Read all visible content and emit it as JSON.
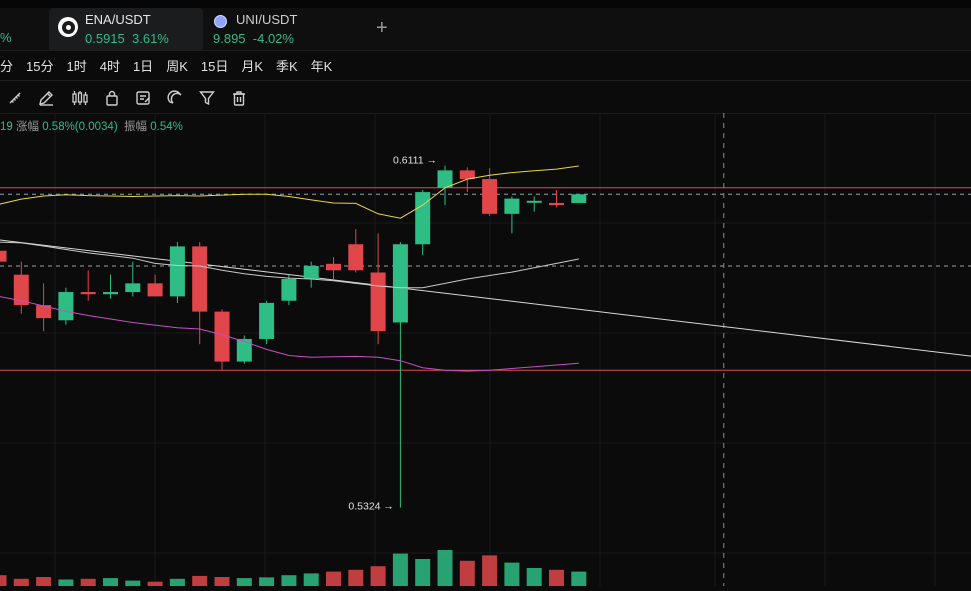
{
  "tabs": [
    {
      "symbol": "ENA/USDT",
      "price": "0.5915",
      "change": "3.61%",
      "active": true,
      "icon": "ena-coin-icon"
    },
    {
      "symbol": "UNI/USDT",
      "price": "9.895",
      "change": "-4.02%",
      "active": false,
      "icon": "uni-coin-icon"
    }
  ],
  "left_partial_change": "%",
  "add_tab": "+",
  "timeframes": [
    "分",
    "15分",
    "1时",
    "4时",
    "1日",
    "周K",
    "15日",
    "月K",
    "季K",
    "年K"
  ],
  "tools": [
    "ruler-icon",
    "pen-icon",
    "candle-style-icon",
    "lock-icon",
    "note-icon",
    "magnet-icon",
    "filter-icon",
    "trash-icon"
  ],
  "stats": {
    "partial_prefix": "19",
    "change_label": "涨幅",
    "change_value": "0.58%(0.0034)",
    "amplitude_label": "振幅",
    "amplitude_value": "0.54%"
  },
  "colors": {
    "up": "#2ebd85",
    "down": "#e0464a",
    "ma_fast": "#e6d64a",
    "ma_mid": "#c9c9c9",
    "ma_slow": "#c84fc2",
    "level": "#e24b4b"
  },
  "chart_data": {
    "type": "candlestick",
    "high_label": "0.6111",
    "low_label": "0.5324",
    "candles": [
      {
        "o": 0.5915,
        "h": 0.5935,
        "l": 0.588,
        "c": 0.589
      },
      {
        "o": 0.586,
        "h": 0.589,
        "l": 0.577,
        "c": 0.579
      },
      {
        "o": 0.579,
        "h": 0.584,
        "l": 0.573,
        "c": 0.576
      },
      {
        "o": 0.5755,
        "h": 0.583,
        "l": 0.5745,
        "c": 0.582
      },
      {
        "o": 0.582,
        "h": 0.587,
        "l": 0.58,
        "c": 0.5815
      },
      {
        "o": 0.5815,
        "h": 0.586,
        "l": 0.5805,
        "c": 0.582
      },
      {
        "o": 0.582,
        "h": 0.589,
        "l": 0.581,
        "c": 0.584
      },
      {
        "o": 0.584,
        "h": 0.586,
        "l": 0.5815,
        "c": 0.581
      },
      {
        "o": 0.581,
        "h": 0.5935,
        "l": 0.5795,
        "c": 0.5925
      },
      {
        "o": 0.5925,
        "h": 0.5935,
        "l": 0.57,
        "c": 0.5775
      },
      {
        "o": 0.5775,
        "h": 0.578,
        "l": 0.564,
        "c": 0.566
      },
      {
        "o": 0.566,
        "h": 0.572,
        "l": 0.5655,
        "c": 0.5712
      },
      {
        "o": 0.5712,
        "h": 0.58,
        "l": 0.57,
        "c": 0.5795
      },
      {
        "o": 0.58,
        "h": 0.586,
        "l": 0.579,
        "c": 0.585
      },
      {
        "o": 0.585,
        "h": 0.589,
        "l": 0.583,
        "c": 0.588
      },
      {
        "o": 0.5885,
        "h": 0.59,
        "l": 0.585,
        "c": 0.587
      },
      {
        "o": 0.593,
        "h": 0.5965,
        "l": 0.5865,
        "c": 0.587
      },
      {
        "o": 0.5865,
        "h": 0.5955,
        "l": 0.57,
        "c": 0.573
      },
      {
        "o": 0.575,
        "h": 0.5935,
        "l": 0.5324,
        "c": 0.593
      },
      {
        "o": 0.593,
        "h": 0.6055,
        "l": 0.5905,
        "c": 0.605
      },
      {
        "o": 0.606,
        "h": 0.6111,
        "l": 0.602,
        "c": 0.61
      },
      {
        "o": 0.61,
        "h": 0.6107,
        "l": 0.605,
        "c": 0.608
      },
      {
        "o": 0.608,
        "h": 0.6105,
        "l": 0.5995,
        "c": 0.6
      },
      {
        "o": 0.6,
        "h": 0.604,
        "l": 0.5955,
        "c": 0.6035
      },
      {
        "o": 0.603,
        "h": 0.604,
        "l": 0.6005,
        "c": 0.603
      },
      {
        "o": 0.6025,
        "h": 0.6055,
        "l": 0.6015,
        "c": 0.602
      },
      {
        "o": 0.6025,
        "h": 0.6045,
        "l": 0.6025,
        "c": 0.6045
      }
    ],
    "ma_fast": [
      0.6022,
      0.6034,
      0.6041,
      0.6044,
      0.6042,
      0.6041,
      0.604,
      0.6041,
      0.6042,
      0.6041,
      0.6043,
      0.6045,
      0.6045,
      0.604,
      0.6032,
      0.6025,
      0.6024,
      0.6,
      0.599,
      0.602,
      0.606,
      0.608,
      0.6089,
      0.6095,
      0.6099,
      0.6103,
      0.611
    ],
    "ma_mid": [
      0.5935,
      0.5933,
      0.5926,
      0.5918,
      0.591,
      0.5904,
      0.5898,
      0.5886,
      0.5881,
      0.588,
      0.587,
      0.5862,
      0.5856,
      0.5852,
      0.585,
      0.5846,
      0.584,
      0.5834,
      0.583,
      0.583,
      0.584,
      0.585,
      0.5858,
      0.5866,
      0.5876,
      0.5886,
      0.5896
    ],
    "ma_slow": [
      0.581,
      0.58,
      0.5788,
      0.5776,
      0.5766,
      0.5758,
      0.575,
      0.5744,
      0.5738,
      0.5735,
      0.5722,
      0.5706,
      0.5688,
      0.5674,
      0.567,
      0.5671,
      0.5672,
      0.567,
      0.5662,
      0.5646,
      0.564,
      0.5638,
      0.564,
      0.5644,
      0.5648,
      0.5652,
      0.5656
    ],
    "trendline": [
      [
        0,
        0.594
      ],
      [
        44,
        0.567
      ]
    ],
    "upper_level": 0.606,
    "lower_level": 0.564,
    "dashed_upper": 0.6045,
    "dashed_lower": 0.588,
    "crosshair_index": 32.5,
    "volume_relative": [
      0.3,
      0.2,
      0.25,
      0.18,
      0.2,
      0.22,
      0.15,
      0.12,
      0.2,
      0.28,
      0.25,
      0.22,
      0.24,
      0.3,
      0.35,
      0.4,
      0.45,
      0.55,
      0.9,
      0.75,
      1.0,
      0.7,
      0.85,
      0.65,
      0.5,
      0.45,
      0.4
    ]
  }
}
